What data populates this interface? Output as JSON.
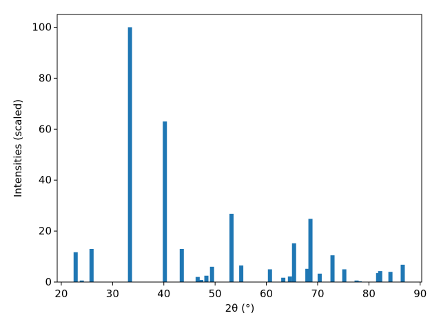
{
  "chart_data": {
    "type": "bar",
    "x_label": "2θ (°)",
    "y_label": "Intensities (scaled)",
    "x": [
      22.8,
      24.0,
      25.9,
      33.4,
      40.2,
      43.5,
      46.6,
      47.3,
      48.3,
      49.4,
      53.2,
      55.1,
      60.7,
      63.3,
      64.6,
      65.4,
      68.0,
      68.6,
      70.4,
      72.9,
      75.2,
      77.6,
      78.2,
      81.8,
      82.2,
      84.2,
      86.6
    ],
    "values": [
      11.7,
      0.6,
      13,
      100,
      63,
      13,
      2,
      0.8,
      2.5,
      6,
      26.8,
      6.5,
      5,
      1.7,
      2.2,
      15.2,
      5.2,
      24.8,
      3.3,
      10.5,
      5,
      0.6,
      0.3,
      3.5,
      4.3,
      4,
      6.8
    ],
    "color": "#1f77b4",
    "xlim": [
      19.2,
      90.3
    ],
    "xticks": [
      20,
      30,
      40,
      50,
      60,
      70,
      80,
      90
    ],
    "ylim": [
      0,
      105
    ],
    "yticks": [
      0,
      20,
      40,
      60,
      80,
      100
    ],
    "grid": false
  }
}
